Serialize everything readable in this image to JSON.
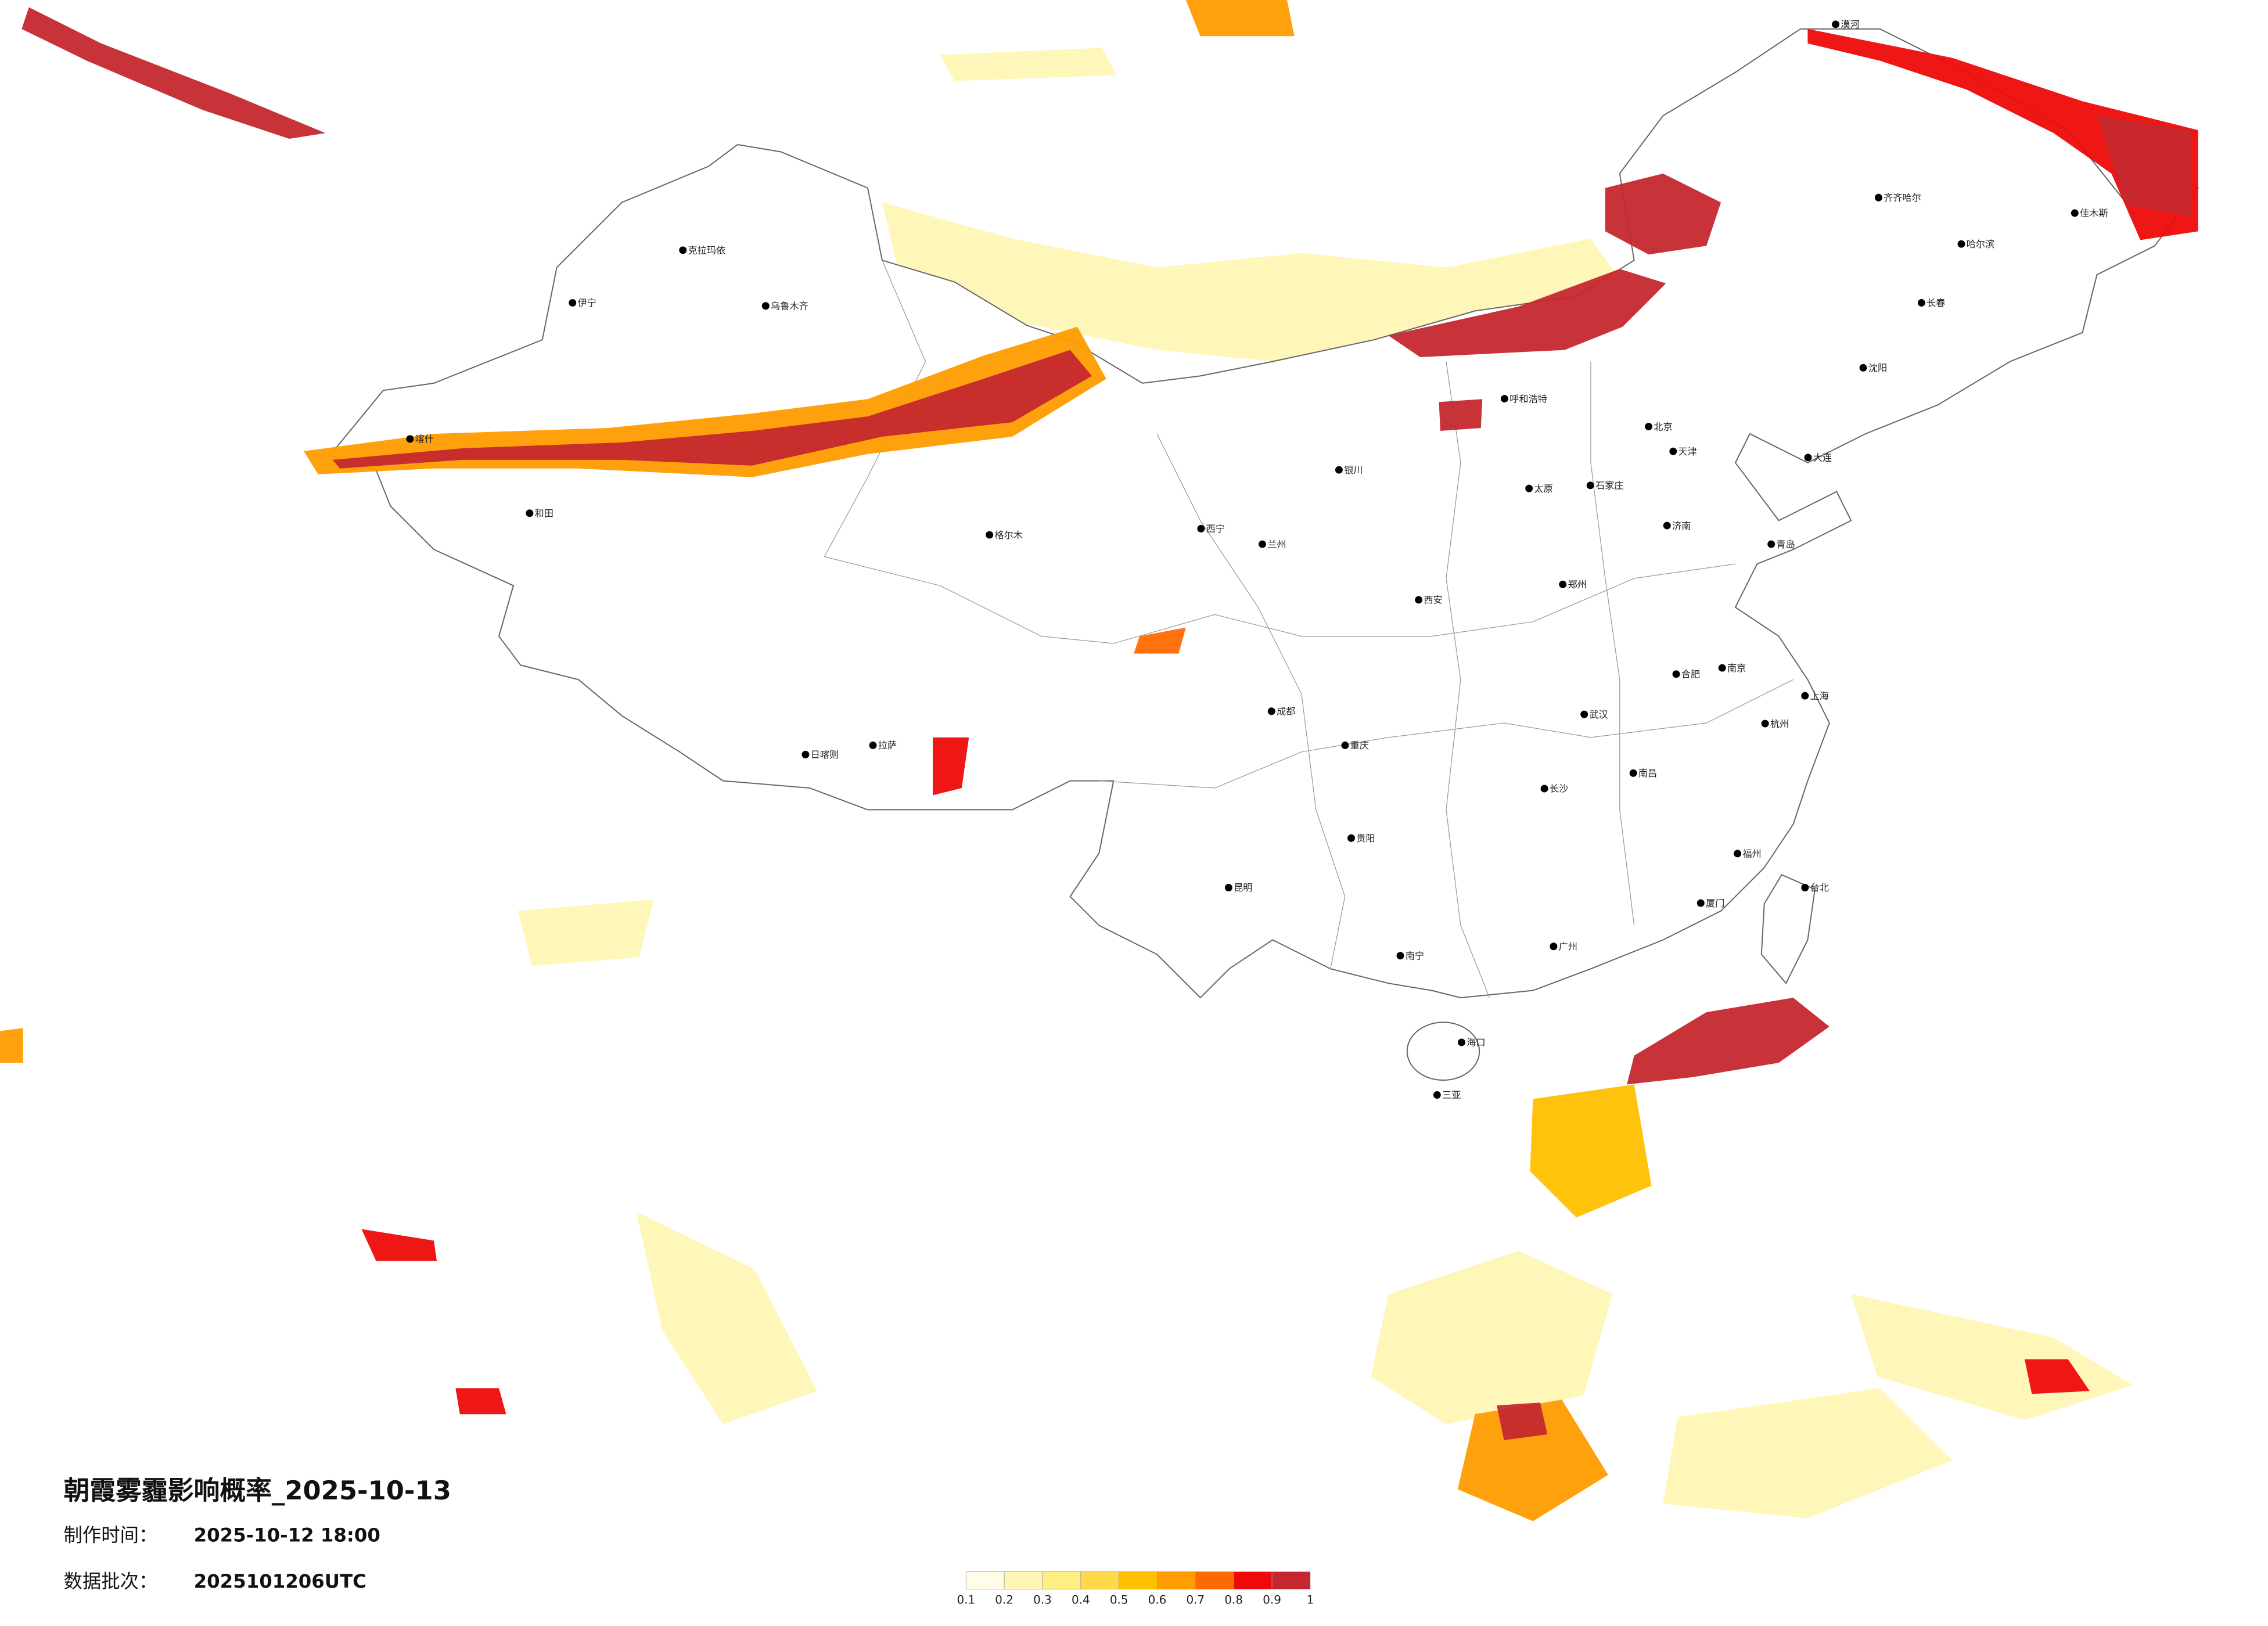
{
  "title": "朝霞雾霾影响概率_2025-10-13",
  "made_time": {
    "label": "制作时间：",
    "value": "2025-10-12 18:00"
  },
  "batch": {
    "label": "数据批次：",
    "value": "2025101206UTC"
  },
  "legend": {
    "ticks": [
      0.1,
      0.2,
      0.3,
      0.4,
      0.5,
      0.6,
      0.7,
      0.8,
      0.9,
      1
    ],
    "colors": [
      "#fffde8",
      "#fff6b6",
      "#ffee82",
      "#ffd94a",
      "#ffc000",
      "#ff9c00",
      "#ff6a00",
      "#ee0a0a",
      "#c4282e"
    ]
  },
  "cities": [
    {
      "name": "北京",
      "lon": 116.4,
      "lat": 39.9
    },
    {
      "name": "天津",
      "lon": 117.2,
      "lat": 39.1
    },
    {
      "name": "石家庄",
      "lon": 114.5,
      "lat": 38.0
    },
    {
      "name": "太原",
      "lon": 112.5,
      "lat": 37.9
    },
    {
      "name": "呼和浩特",
      "lon": 111.7,
      "lat": 40.8
    },
    {
      "name": "沈阳",
      "lon": 123.4,
      "lat": 41.8
    },
    {
      "name": "长春",
      "lon": 125.3,
      "lat": 43.9
    },
    {
      "name": "哈尔滨",
      "lon": 126.6,
      "lat": 45.8
    },
    {
      "name": "上海",
      "lon": 121.5,
      "lat": 31.2
    },
    {
      "name": "南京",
      "lon": 118.8,
      "lat": 32.1
    },
    {
      "name": "杭州",
      "lon": 120.2,
      "lat": 30.3
    },
    {
      "name": "合肥",
      "lon": 117.3,
      "lat": 31.9
    },
    {
      "name": "福州",
      "lon": 119.3,
      "lat": 26.1
    },
    {
      "name": "南昌",
      "lon": 115.9,
      "lat": 28.7
    },
    {
      "name": "济南",
      "lon": 117.0,
      "lat": 36.7
    },
    {
      "name": "郑州",
      "lon": 113.6,
      "lat": 34.8
    },
    {
      "name": "武汉",
      "lon": 114.3,
      "lat": 30.6
    },
    {
      "name": "长沙",
      "lon": 113.0,
      "lat": 28.2
    },
    {
      "name": "广州",
      "lon": 113.3,
      "lat": 23.1
    },
    {
      "name": "南宁",
      "lon": 108.3,
      "lat": 22.8
    },
    {
      "name": "海口",
      "lon": 110.3,
      "lat": 20.0
    },
    {
      "name": "重庆",
      "lon": 106.5,
      "lat": 29.6
    },
    {
      "name": "成都",
      "lon": 104.1,
      "lat": 30.7
    },
    {
      "name": "贵阳",
      "lon": 106.7,
      "lat": 26.6
    },
    {
      "name": "昆明",
      "lon": 102.7,
      "lat": 25.0
    },
    {
      "name": "拉萨",
      "lon": 91.1,
      "lat": 29.6
    },
    {
      "name": "西安",
      "lon": 108.9,
      "lat": 34.3
    },
    {
      "name": "兰州",
      "lon": 103.8,
      "lat": 36.1
    },
    {
      "name": "西宁",
      "lon": 101.8,
      "lat": 36.6
    },
    {
      "name": "银川",
      "lon": 106.3,
      "lat": 38.5
    },
    {
      "name": "乌鲁木齐",
      "lon": 87.6,
      "lat": 43.8
    },
    {
      "name": "喀什",
      "lon": 76.0,
      "lat": 39.5
    },
    {
      "name": "和田",
      "lon": 79.9,
      "lat": 37.1
    },
    {
      "name": "伊宁",
      "lon": 81.3,
      "lat": 43.9
    },
    {
      "name": "克拉玛依",
      "lon": 84.9,
      "lat": 45.6
    },
    {
      "name": "台北",
      "lon": 121.5,
      "lat": 25.0
    },
    {
      "name": "大连",
      "lon": 121.6,
      "lat": 38.9
    },
    {
      "name": "青岛",
      "lon": 120.4,
      "lat": 36.1
    },
    {
      "name": "厦门",
      "lon": 118.1,
      "lat": 24.5
    },
    {
      "name": "三亚",
      "lon": 109.5,
      "lat": 18.3
    },
    {
      "name": "漠河",
      "lon": 122.5,
      "lat": 52.9
    },
    {
      "name": "齐齐哈尔",
      "lon": 123.9,
      "lat": 47.3
    },
    {
      "name": "佳木斯",
      "lon": 130.3,
      "lat": 46.8
    },
    {
      "name": "格尔木",
      "lon": 94.9,
      "lat": 36.4
    },
    {
      "name": "日喀则",
      "lon": 88.9,
      "lat": 29.3
    }
  ]
}
